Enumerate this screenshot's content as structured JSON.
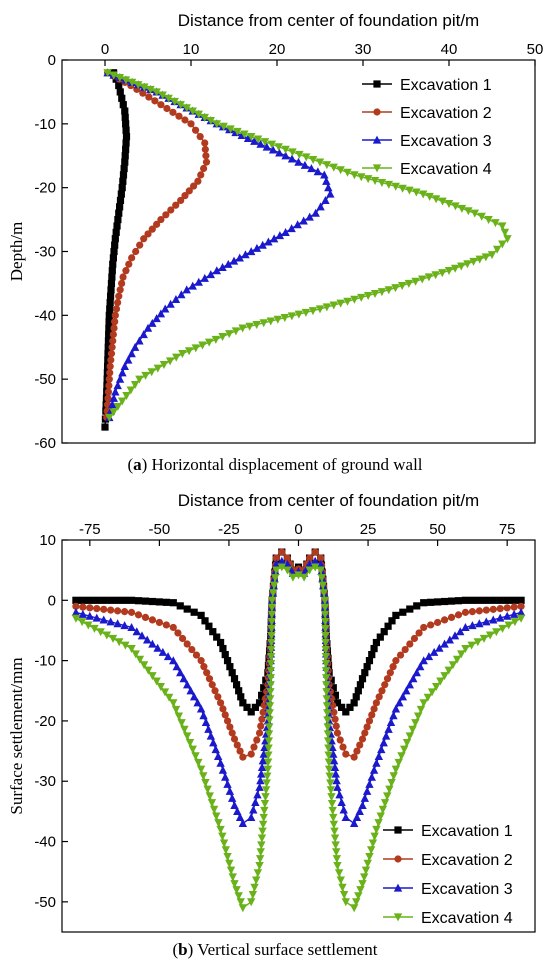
{
  "chart_data": [
    {
      "type": "line",
      "panel": "a",
      "caption_letter": "a",
      "caption_text": " Horizontal displacement of ground wall",
      "xlabel": "Distance from center of foundation pit/m",
      "ylabel": "Depth/m",
      "xlim": [
        -5,
        50
      ],
      "ylim": [
        -60,
        0
      ],
      "x_axis_position": "top",
      "xticks": [
        0,
        10,
        20,
        30,
        40,
        50
      ],
      "yticks": [
        0,
        -10,
        -20,
        -30,
        -40,
        -50,
        -60
      ],
      "legend_position": "top-right",
      "grid": false,
      "series": [
        {
          "name": "Excavation 1",
          "color": "#000000",
          "marker": "square",
          "x": [
            1.0,
            1.6,
            2.3,
            2.5,
            2.3,
            2.0,
            1.6,
            1.2,
            0.9,
            0.7,
            0.5,
            0.4,
            0.3,
            0.2,
            0.1,
            0.0
          ],
          "y": [
            -2,
            -4,
            -8,
            -12,
            -16,
            -20,
            -24,
            -28,
            -32,
            -36,
            -40,
            -44,
            -48,
            -52,
            -55,
            -57.5
          ]
        },
        {
          "name": "Excavation 2",
          "color": "#b23a1e",
          "marker": "circle",
          "x": [
            0.3,
            3.0,
            6.5,
            10.0,
            11.6,
            11.8,
            10.8,
            8.8,
            6.5,
            4.5,
            3.1,
            2.1,
            1.6,
            1.2,
            0.9,
            0.6,
            0.4,
            0.2
          ],
          "y": [
            -2,
            -4,
            -7,
            -10,
            -13,
            -16,
            -19,
            -22,
            -25,
            -28,
            -31,
            -34,
            -37,
            -40,
            -44,
            -48,
            -52,
            -56
          ]
        },
        {
          "name": "Excavation 3",
          "color": "#1a1acc",
          "marker": "triangle-up",
          "x": [
            0.3,
            6.0,
            13.0,
            21.0,
            25.5,
            26.2,
            24.5,
            21.0,
            17.0,
            13.0,
            9.5,
            7.0,
            5.0,
            3.5,
            2.3,
            1.2,
            0.5
          ],
          "y": [
            -2,
            -5,
            -10,
            -15,
            -18,
            -21,
            -24,
            -27,
            -30,
            -33,
            -36,
            -39,
            -42,
            -45,
            -48,
            -52,
            -56
          ]
        },
        {
          "name": "Excavation 4",
          "color": "#6ab21a",
          "marker": "triangle-down",
          "x": [
            0.3,
            6.0,
            13.0,
            21.0,
            29.0,
            37.0,
            43.0,
            46.2,
            46.8,
            45.0,
            40.0,
            33.0,
            25.0,
            16.0,
            9.0,
            4.0,
            0.5
          ],
          "y": [
            -2,
            -5,
            -10,
            -14,
            -18,
            -21,
            -24,
            -26,
            -28,
            -30.5,
            -33,
            -36,
            -39,
            -42,
            -46,
            -50,
            -56
          ]
        }
      ]
    },
    {
      "type": "line",
      "panel": "b",
      "caption_letter": "b",
      "caption_text": " Vertical surface settlement",
      "xlabel": "Distance from center of foundation pit/m",
      "ylabel": "Surface settlement/mm",
      "xlim": [
        -85,
        85
      ],
      "ylim": [
        -55,
        10
      ],
      "x_axis_position": "top",
      "xticks": [
        -75,
        -50,
        -25,
        0,
        25,
        50,
        75
      ],
      "yticks": [
        10,
        0,
        -10,
        -20,
        -30,
        -40,
        -50
      ],
      "legend_position": "bottom-right",
      "grid": false,
      "series": [
        {
          "name": "Excavation 1",
          "color": "#000000",
          "marker": "square",
          "x": [
            -80,
            -60,
            -45,
            -35,
            -28,
            -23,
            -20,
            -17,
            -14,
            -11,
            -10,
            -9.5,
            -8,
            -6,
            -4,
            -2,
            0,
            2,
            4,
            6,
            8,
            9.5,
            10,
            11,
            14,
            17,
            20,
            23,
            28,
            35,
            45,
            60,
            80
          ],
          "y": [
            0,
            0,
            -0.4,
            -2.5,
            -7,
            -13,
            -17,
            -18.5,
            -17,
            -12,
            -6,
            0,
            7,
            8,
            7,
            5,
            5.5,
            5,
            7,
            8,
            7,
            0,
            -6,
            -12,
            -17,
            -18.5,
            -17,
            -13,
            -7,
            -2.5,
            -0.4,
            0,
            0
          ]
        },
        {
          "name": "Excavation 2",
          "color": "#b23a1e",
          "marker": "circle",
          "x": [
            -80,
            -60,
            -45,
            -35,
            -28,
            -23,
            -20,
            -17,
            -14,
            -11,
            -10,
            -9.5,
            -8,
            -6,
            -4,
            -2,
            0,
            2,
            4,
            6,
            8,
            9.5,
            10,
            11,
            14,
            17,
            20,
            23,
            28,
            35,
            45,
            60,
            80
          ],
          "y": [
            -1,
            -2,
            -4.5,
            -10,
            -17,
            -23,
            -26,
            -25.5,
            -22,
            -14,
            -7,
            0,
            7,
            8,
            7,
            5,
            5.2,
            5,
            7,
            8,
            7,
            0,
            -7,
            -14,
            -22,
            -25.5,
            -26,
            -23,
            -17,
            -10,
            -4.5,
            -2,
            -1
          ]
        },
        {
          "name": "Excavation 3",
          "color": "#1a1acc",
          "marker": "triangle-up",
          "x": [
            -80,
            -60,
            -45,
            -35,
            -28,
            -23,
            -20,
            -17,
            -14,
            -11,
            -10,
            -9.5,
            -8,
            -6,
            -4,
            -2,
            0,
            2,
            4,
            6,
            8,
            9.5,
            10,
            11,
            14,
            17,
            20,
            23,
            28,
            35,
            45,
            60,
            80
          ],
          "y": [
            -2,
            -4.5,
            -10,
            -18,
            -27,
            -34,
            -37,
            -36,
            -31,
            -20,
            -10,
            0,
            6,
            6.5,
            6,
            4.5,
            4.8,
            4.5,
            6,
            6.5,
            6,
            0,
            -10,
            -20,
            -31,
            -36,
            -37,
            -34,
            -27,
            -18,
            -10,
            -4.5,
            -2
          ]
        },
        {
          "name": "Excavation 4",
          "color": "#6ab21a",
          "marker": "triangle-down",
          "x": [
            -80,
            -60,
            -45,
            -35,
            -28,
            -23,
            -20,
            -17,
            -14,
            -11,
            -10,
            -9.5,
            -8,
            -6,
            -4,
            -2,
            0,
            2,
            4,
            6,
            8,
            9.5,
            10,
            11,
            14,
            17,
            20,
            23,
            28,
            35,
            45,
            60,
            80
          ],
          "y": [
            -3,
            -8,
            -17,
            -28,
            -38,
            -47,
            -51,
            -50,
            -44,
            -28,
            -14,
            0,
            5,
            5.5,
            5,
            3.8,
            4.2,
            3.8,
            5,
            5.5,
            5,
            0,
            -14,
            -28,
            -44,
            -50,
            -51,
            -47,
            -38,
            -28,
            -17,
            -8,
            -3
          ]
        }
      ]
    }
  ]
}
